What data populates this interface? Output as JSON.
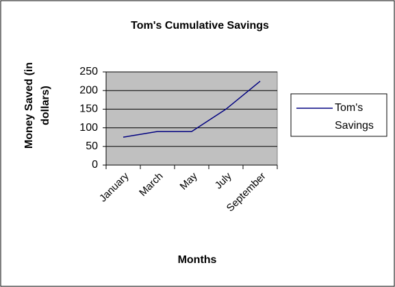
{
  "chart_data": {
    "type": "line",
    "title": "Tom's Cumulative Savings",
    "x_label": "Months",
    "y_label": "Money Saved (in dollars)",
    "categories": [
      "January",
      "March",
      "May",
      "July",
      "September"
    ],
    "series": [
      {
        "name": "Tom's Savings",
        "color": "#000080",
        "values": [
          75,
          90,
          90,
          150,
          225
        ]
      }
    ],
    "ylim": [
      0,
      250
    ],
    "yticks": [
      0,
      50,
      100,
      150,
      200,
      250
    ],
    "grid": true,
    "legend": "right"
  }
}
